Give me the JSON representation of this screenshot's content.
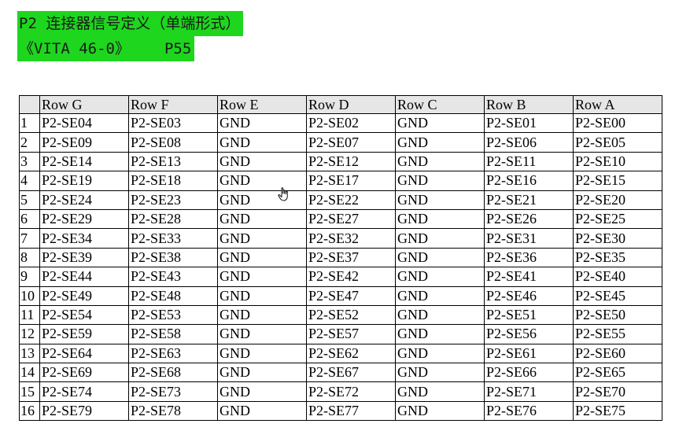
{
  "heading": {
    "line1": "P2 连接器信号定义（单端形式）",
    "line2_left": "《VITA 46-0》",
    "line2_right": "P55"
  },
  "table": {
    "headers": [
      "",
      "Row G",
      "Row F",
      "Row E",
      "Row D",
      "Row C",
      "Row B",
      "Row A"
    ],
    "rows": [
      [
        "1",
        "P2-SE04",
        "P2-SE03",
        "GND",
        "P2-SE02",
        "GND",
        "P2-SE01",
        "P2-SE00"
      ],
      [
        "2",
        "P2-SE09",
        "P2-SE08",
        "GND",
        "P2-SE07",
        "GND",
        "P2-SE06",
        "P2-SE05"
      ],
      [
        "3",
        "P2-SE14",
        "P2-SE13",
        "GND",
        "P2-SE12",
        "GND",
        "P2-SE11",
        "P2-SE10"
      ],
      [
        "4",
        "P2-SE19",
        "P2-SE18",
        "GND",
        "P2-SE17",
        "GND",
        "P2-SE16",
        "P2-SE15"
      ],
      [
        "5",
        "P2-SE24",
        "P2-SE23",
        "GND",
        "P2-SE22",
        "GND",
        "P2-SE21",
        "P2-SE20"
      ],
      [
        "6",
        "P2-SE29",
        "P2-SE28",
        "GND",
        "P2-SE27",
        "GND",
        "P2-SE26",
        "P2-SE25"
      ],
      [
        "7",
        "P2-SE34",
        "P2-SE33",
        "GND",
        "P2-SE32",
        "GND",
        "P2-SE31",
        "P2-SE30"
      ],
      [
        "8",
        "P2-SE39",
        "P2-SE38",
        "GND",
        "P2-SE37",
        "GND",
        "P2-SE36",
        "P2-SE35"
      ],
      [
        "9",
        "P2-SE44",
        "P2-SE43",
        "GND",
        "P2-SE42",
        "GND",
        "P2-SE41",
        "P2-SE40"
      ],
      [
        "10",
        "P2-SE49",
        "P2-SE48",
        "GND",
        "P2-SE47",
        "GND",
        "P2-SE46",
        "P2-SE45"
      ],
      [
        "11",
        "P2-SE54",
        "P2-SE53",
        "GND",
        "P2-SE52",
        "GND",
        "P2-SE51",
        "P2-SE50"
      ],
      [
        "12",
        "P2-SE59",
        "P2-SE58",
        "GND",
        "P2-SE57",
        "GND",
        "P2-SE56",
        "P2-SE55"
      ],
      [
        "13",
        "P2-SE64",
        "P2-SE63",
        "GND",
        "P2-SE62",
        "GND",
        "P2-SE61",
        "P2-SE60"
      ],
      [
        "14",
        "P2-SE69",
        "P2-SE68",
        "GND",
        "P2-SE67",
        "GND",
        "P2-SE66",
        "P2-SE65"
      ],
      [
        "15",
        "P2-SE74",
        "P2-SE73",
        "GND",
        "P2-SE72",
        "GND",
        "P2-SE71",
        "P2-SE70"
      ],
      [
        "16",
        "P2-SE79",
        "P2-SE78",
        "GND",
        "P2-SE77",
        "GND",
        "P2-SE76",
        "P2-SE75"
      ]
    ]
  },
  "colors": {
    "highlight": "#1ed61e",
    "header_bg": "#e6e6e6",
    "border": "#000000"
  },
  "cursor_icon": "hand-pointer-icon"
}
